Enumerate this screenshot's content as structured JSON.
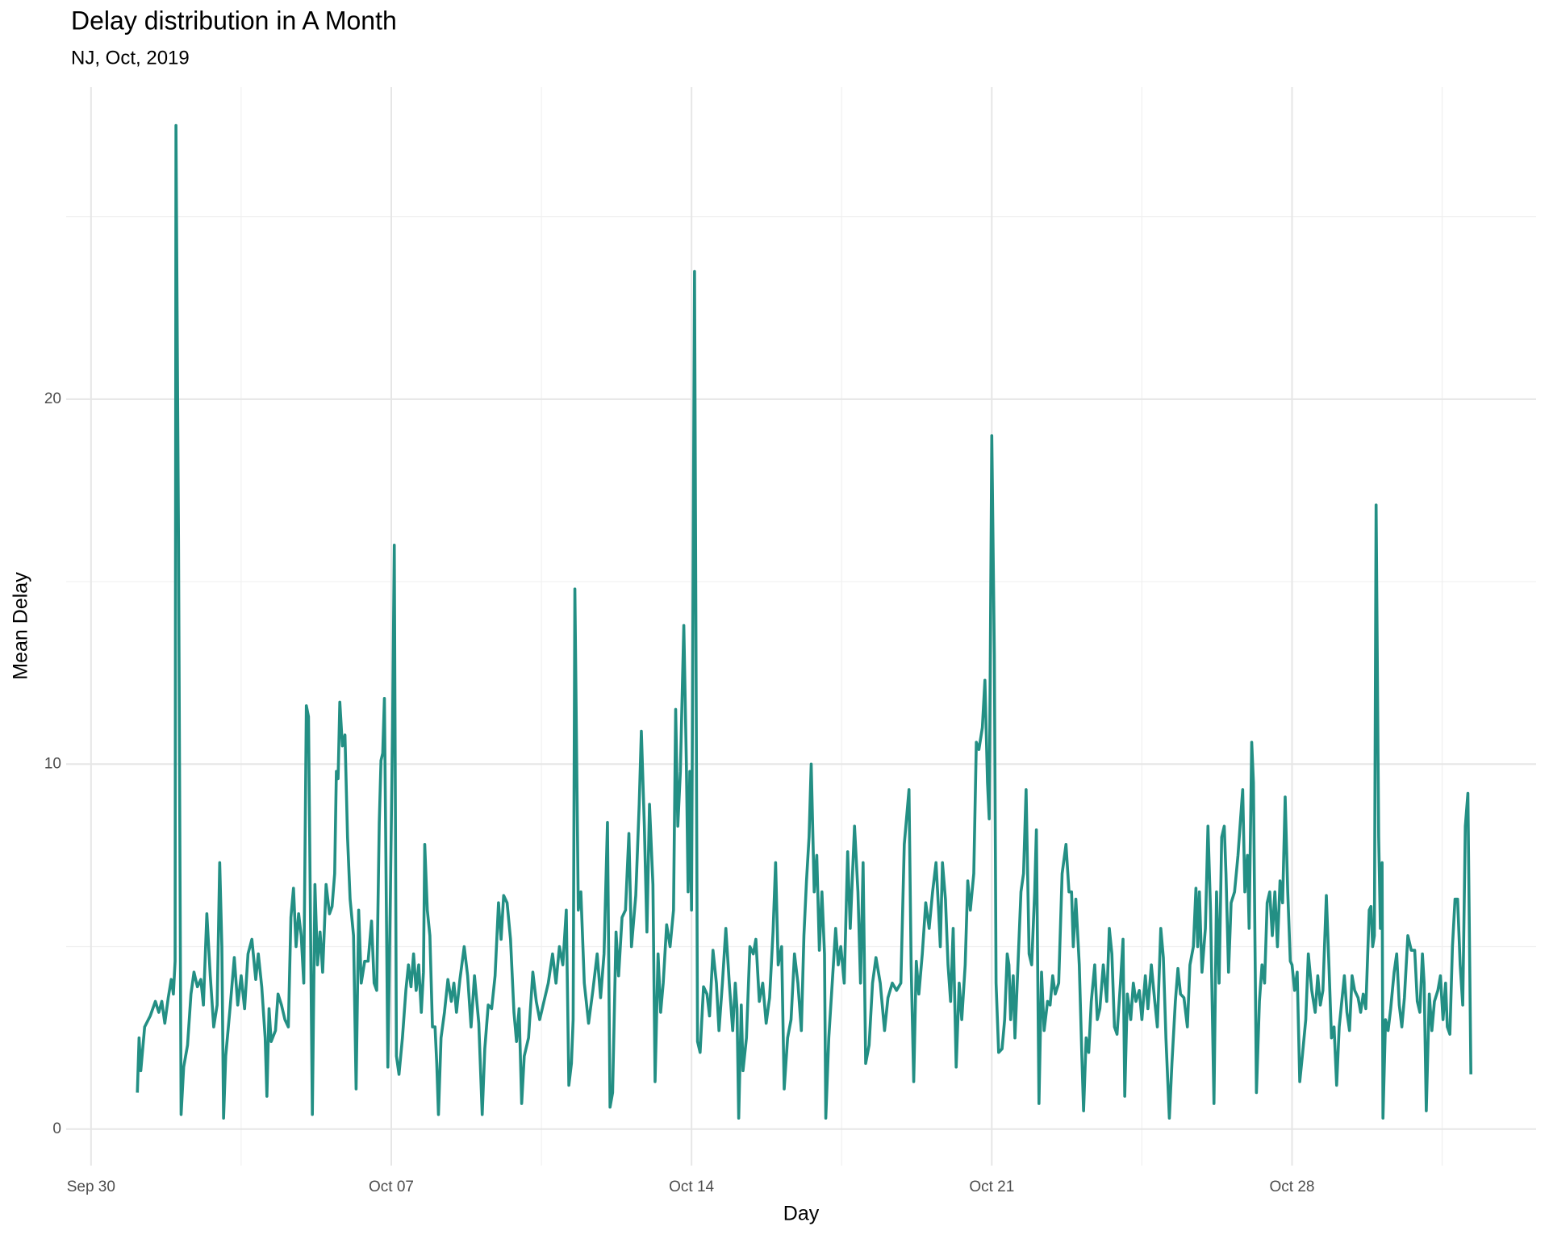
{
  "chart_data": {
    "type": "line",
    "title": "Delay distribution in A Month",
    "subtitle": "NJ, Oct, 2019",
    "x_label": "Day",
    "y_label": "Mean Delay",
    "xlim": [
      -0.58,
      33.69
    ],
    "ylim": [
      -1.0,
      28.55
    ],
    "xticks": [
      {
        "value": 0,
        "label": "Sep 30"
      },
      {
        "value": 7,
        "label": "Oct 07"
      },
      {
        "value": 14,
        "label": "Oct 14"
      },
      {
        "value": 21,
        "label": "Oct 21"
      },
      {
        "value": 28,
        "label": "Oct 28"
      }
    ],
    "yticks": [
      0,
      10,
      20
    ],
    "x_minor_ticks": [
      3.5,
      10.5,
      17.5,
      24.5,
      31.5
    ],
    "y_minor_ticks": [
      5,
      15,
      25
    ],
    "grid": true,
    "series": [
      {
        "color": "#238f84",
        "x": [
          1.08,
          1.12,
          1.16,
          1.25,
          1.38,
          1.5,
          1.58,
          1.65,
          1.72,
          1.8,
          1.87,
          1.92,
          1.96,
          1.98,
          2.04,
          2.1,
          2.16,
          2.25,
          2.33,
          2.4,
          2.48,
          2.56,
          2.62,
          2.7,
          2.78,
          2.86,
          2.94,
          3.0,
          3.05,
          3.09,
          3.14,
          3.24,
          3.34,
          3.42,
          3.5,
          3.58,
          3.66,
          3.75,
          3.84,
          3.9,
          3.98,
          4.06,
          4.1,
          4.15,
          4.2,
          4.3,
          4.36,
          4.44,
          4.52,
          4.6,
          4.66,
          4.72,
          4.78,
          4.84,
          4.9,
          4.96,
          5.02,
          5.07,
          5.16,
          5.22,
          5.28,
          5.34,
          5.4,
          5.48,
          5.56,
          5.62,
          5.68,
          5.72,
          5.76,
          5.8,
          5.86,
          5.92,
          5.98,
          6.04,
          6.12,
          6.18,
          6.24,
          6.3,
          6.38,
          6.46,
          6.54,
          6.6,
          6.66,
          6.72,
          6.76,
          6.8,
          6.84,
          6.92,
          6.98,
          7.03,
          7.07,
          7.12,
          7.18,
          7.26,
          7.34,
          7.4,
          7.46,
          7.52,
          7.58,
          7.64,
          7.7,
          7.75,
          7.78,
          7.84,
          7.9,
          7.96,
          8.02,
          8.06,
          8.1,
          8.16,
          8.24,
          8.32,
          8.4,
          8.46,
          8.52,
          8.6,
          8.7,
          8.78,
          8.86,
          8.94,
          9.04,
          9.12,
          9.18,
          9.26,
          9.34,
          9.42,
          9.5,
          9.56,
          9.62,
          9.7,
          9.78,
          9.86,
          9.92,
          9.98,
          10.04,
          10.1,
          10.2,
          10.3,
          10.38,
          10.46,
          10.56,
          10.66,
          10.76,
          10.84,
          10.92,
          11.0,
          11.08,
          11.14,
          11.2,
          11.24,
          11.28,
          11.36,
          11.42,
          11.5,
          11.6,
          11.7,
          11.8,
          11.88,
          11.96,
          12.04,
          12.1,
          12.16,
          12.24,
          12.3,
          12.38,
          12.46,
          12.54,
          12.6,
          12.7,
          12.78,
          12.83,
          12.9,
          12.96,
          13.02,
          13.1,
          13.15,
          13.22,
          13.28,
          13.34,
          13.42,
          13.5,
          13.58,
          13.63,
          13.68,
          13.74,
          13.82,
          13.88,
          13.92,
          13.96,
          14.0,
          14.07,
          14.14,
          14.2,
          14.28,
          14.36,
          14.42,
          14.5,
          14.58,
          14.64,
          14.72,
          14.8,
          14.88,
          14.96,
          15.02,
          15.06,
          15.1,
          15.16,
          15.2,
          15.28,
          15.36,
          15.44,
          15.5,
          15.58,
          15.66,
          15.74,
          15.82,
          15.9,
          15.96,
          16.02,
          16.1,
          16.16,
          16.24,
          16.32,
          16.4,
          16.48,
          16.56,
          16.62,
          16.68,
          16.74,
          16.79,
          16.86,
          16.92,
          16.98,
          17.04,
          17.1,
          17.13,
          17.2,
          17.28,
          17.36,
          17.42,
          17.48,
          17.56,
          17.64,
          17.7,
          17.8,
          17.88,
          17.94,
          18.0,
          18.06,
          18.14,
          18.22,
          18.3,
          18.4,
          18.5,
          18.58,
          18.68,
          18.78,
          18.88,
          18.96,
          19.07,
          19.12,
          19.18,
          19.24,
          19.3,
          19.38,
          19.46,
          19.54,
          19.62,
          19.7,
          19.76,
          19.8,
          19.85,
          19.92,
          19.98,
          20.04,
          20.1,
          20.17,
          20.24,
          20.3,
          20.38,
          20.44,
          20.5,
          20.58,
          20.64,
          20.7,
          20.78,
          20.84,
          20.9,
          20.94,
          21.0,
          21.06,
          21.1,
          21.16,
          21.24,
          21.3,
          21.36,
          21.4,
          21.44,
          21.5,
          21.54,
          21.6,
          21.68,
          21.74,
          21.8,
          21.87,
          21.93,
          22.0,
          22.04,
          22.1,
          22.16,
          22.22,
          22.3,
          22.36,
          22.42,
          22.48,
          22.56,
          22.64,
          22.73,
          22.8,
          22.86,
          22.9,
          22.96,
          23.04,
          23.1,
          23.14,
          23.2,
          23.26,
          23.32,
          23.4,
          23.46,
          23.52,
          23.6,
          23.68,
          23.74,
          23.8,
          23.86,
          23.92,
          24.0,
          24.06,
          24.1,
          24.16,
          24.24,
          24.3,
          24.36,
          24.44,
          24.5,
          24.58,
          24.64,
          24.72,
          24.8,
          24.86,
          24.94,
          25.0,
          25.06,
          25.14,
          25.2,
          25.28,
          25.34,
          25.4,
          25.48,
          25.56,
          25.62,
          25.7,
          25.76,
          25.8,
          25.84,
          25.9,
          25.98,
          26.04,
          26.1,
          26.18,
          26.24,
          26.3,
          26.36,
          26.42,
          26.46,
          26.52,
          26.58,
          26.66,
          26.74,
          26.8,
          26.85,
          26.9,
          26.96,
          27.0,
          27.06,
          27.1,
          27.17,
          27.24,
          27.3,
          27.36,
          27.42,
          27.48,
          27.54,
          27.6,
          27.66,
          27.72,
          27.78,
          27.84,
          27.9,
          27.96,
          28.0,
          28.06,
          28.12,
          28.18,
          28.24,
          28.32,
          28.38,
          28.46,
          28.54,
          28.6,
          28.66,
          28.72,
          28.8,
          28.86,
          28.92,
          28.98,
          29.04,
          29.1,
          29.16,
          29.22,
          29.28,
          29.34,
          29.4,
          29.46,
          29.54,
          29.6,
          29.66,
          29.72,
          29.8,
          29.84,
          29.88,
          29.92,
          29.96,
          30.02,
          30.06,
          30.1,
          30.12,
          30.18,
          30.24,
          30.3,
          30.38,
          30.44,
          30.5,
          30.56,
          30.62,
          30.7,
          30.78,
          30.86,
          30.92,
          30.98,
          31.04,
          31.08,
          31.13,
          31.2,
          31.26,
          31.32,
          31.4,
          31.46,
          31.52,
          31.58,
          31.62,
          31.68,
          31.74,
          31.8,
          31.86,
          31.92,
          31.98,
          32.04,
          32.1,
          32.17
        ],
        "values": [
          1.0,
          2.5,
          1.6,
          2.8,
          3.1,
          3.5,
          3.2,
          3.5,
          2.9,
          3.6,
          4.1,
          3.7,
          4.6,
          27.5,
          16,
          0.4,
          1.7,
          2.3,
          3.7,
          4.3,
          3.9,
          4.1,
          3.4,
          5.9,
          4.2,
          2.8,
          3.4,
          7.3,
          5.0,
          0.3,
          2.0,
          3.3,
          4.7,
          3.4,
          4.2,
          3.3,
          4.8,
          5.2,
          4.1,
          4.8,
          3.9,
          2.5,
          0.9,
          3.3,
          2.4,
          2.7,
          3.7,
          3.4,
          3.0,
          2.8,
          5.8,
          6.6,
          5.0,
          5.9,
          5.3,
          4.0,
          11.6,
          11.3,
          0.4,
          6.7,
          4.5,
          5.4,
          4.3,
          6.7,
          5.9,
          6.1,
          7.0,
          9.8,
          9.6,
          11.7,
          10.5,
          10.8,
          8.0,
          6.3,
          5.3,
          1.1,
          6.0,
          4.0,
          4.6,
          4.6,
          5.7,
          4.0,
          3.8,
          8.4,
          10.1,
          10.3,
          11.8,
          1.7,
          6.5,
          11.0,
          16.0,
          2.0,
          1.5,
          2.5,
          3.8,
          4.5,
          3.9,
          4.8,
          3.8,
          4.5,
          3.2,
          4.3,
          7.8,
          6.0,
          5.3,
          2.8,
          2.8,
          1.8,
          0.4,
          2.5,
          3.2,
          4.1,
          3.5,
          4.0,
          3.2,
          4.1,
          5.0,
          4.2,
          2.8,
          4.2,
          2.9,
          0.4,
          2.2,
          3.4,
          3.3,
          4.2,
          6.2,
          5.2,
          6.4,
          6.2,
          5.2,
          3.2,
          2.4,
          3.3,
          0.7,
          2.0,
          2.5,
          4.3,
          3.5,
          3.0,
          3.5,
          4.0,
          4.8,
          4.0,
          5.0,
          4.5,
          6.0,
          1.2,
          1.8,
          3.0,
          14.8,
          6.0,
          6.5,
          4.0,
          2.9,
          3.8,
          4.8,
          3.6,
          4.8,
          8.4,
          0.6,
          1.0,
          5.4,
          4.2,
          5.8,
          6.0,
          8.1,
          5.0,
          6.4,
          8.9,
          10.9,
          8.3,
          5.4,
          8.9,
          6.7,
          1.3,
          4.8,
          3.2,
          4.0,
          5.6,
          5.0,
          6.0,
          11.5,
          8.3,
          9.8,
          13.8,
          10.0,
          6.5,
          9.8,
          6.0,
          23.5,
          2.4,
          2.1,
          3.9,
          3.7,
          3.1,
          4.9,
          4.0,
          2.7,
          4.0,
          5.5,
          4.0,
          2.7,
          4.0,
          3.3,
          0.3,
          3.4,
          1.6,
          2.5,
          5.0,
          4.8,
          5.2,
          3.5,
          4.0,
          2.9,
          3.6,
          5.4,
          7.3,
          4.5,
          5.0,
          1.1,
          2.5,
          3.0,
          4.8,
          4.0,
          2.7,
          5.3,
          6.8,
          8.0,
          10.0,
          6.5,
          7.5,
          4.9,
          6.5,
          4.8,
          0.3,
          2.5,
          4.0,
          5.5,
          4.5,
          5.0,
          4.0,
          7.6,
          5.5,
          8.3,
          6.5,
          4.0,
          7.3,
          1.8,
          2.3,
          4.0,
          4.7,
          4.0,
          2.7,
          3.6,
          4.0,
          3.8,
          4.0,
          7.8,
          9.3,
          4.5,
          1.3,
          4.6,
          3.7,
          4.8,
          6.2,
          5.5,
          6.5,
          7.3,
          6.0,
          5.0,
          7.3,
          6.3,
          4.5,
          3.5,
          5.5,
          1.7,
          4.0,
          3.0,
          4.5,
          6.8,
          6.0,
          7.0,
          10.6,
          10.4,
          11.0,
          12.3,
          9.5,
          8.5,
          19.0,
          13.0,
          4.0,
          2.1,
          2.2,
          3.0,
          4.8,
          4.5,
          3.0,
          4.2,
          2.5,
          4.2,
          6.5,
          7.0,
          9.3,
          4.8,
          4.5,
          6.5,
          8.2,
          0.7,
          4.3,
          2.7,
          3.5,
          3.4,
          4.2,
          3.7,
          4.0,
          7.0,
          7.8,
          6.5,
          6.5,
          5.0,
          6.3,
          4.5,
          2.0,
          0.5,
          2.5,
          2.1,
          3.5,
          4.5,
          3.0,
          3.3,
          4.5,
          3.5,
          5.5,
          4.8,
          2.8,
          2.6,
          4.0,
          5.2,
          0.9,
          3.7,
          3.0,
          4.0,
          3.5,
          3.8,
          3.0,
          4.2,
          3.3,
          4.5,
          3.5,
          2.8,
          5.5,
          4.7,
          2.5,
          0.3,
          1.8,
          3.5,
          4.4,
          3.7,
          3.6,
          2.8,
          4.5,
          5.0,
          6.6,
          5.0,
          6.5,
          4.3,
          5.5,
          8.3,
          6.0,
          0.7,
          6.5,
          4.0,
          8.0,
          8.3,
          7.0,
          4.3,
          6.2,
          6.5,
          7.5,
          8.5,
          9.3,
          6.5,
          7.5,
          5.5,
          10.6,
          9.5,
          1.0,
          3.5,
          4.5,
          4.0,
          6.2,
          6.5,
          5.3,
          6.5,
          5.0,
          6.8,
          6.2,
          9.1,
          6.5,
          4.6,
          4.5,
          3.8,
          4.3,
          1.3,
          2.0,
          3.0,
          4.8,
          3.8,
          3.2,
          4.2,
          3.4,
          3.8,
          6.4,
          4.5,
          2.5,
          2.8,
          1.2,
          2.8,
          3.5,
          4.2,
          3.2,
          2.7,
          4.2,
          3.8,
          3.6,
          3.2,
          3.7,
          3.3,
          6.0,
          6.1,
          5.0,
          5.3,
          17.1,
          8.0,
          5.5,
          7.3,
          0.3,
          3.0,
          2.7,
          3.3,
          4.3,
          4.8,
          3.4,
          2.8,
          3.6,
          5.3,
          4.9,
          4.9,
          3.5,
          3.2,
          4.8,
          4.0,
          0.5,
          3.7,
          2.7,
          3.5,
          3.8,
          4.2,
          3.0,
          4.0,
          2.8,
          2.6,
          5.0,
          6.3,
          6.3,
          4.5,
          3.4,
          8.3,
          9.2,
          1.5
        ]
      }
    ]
  }
}
